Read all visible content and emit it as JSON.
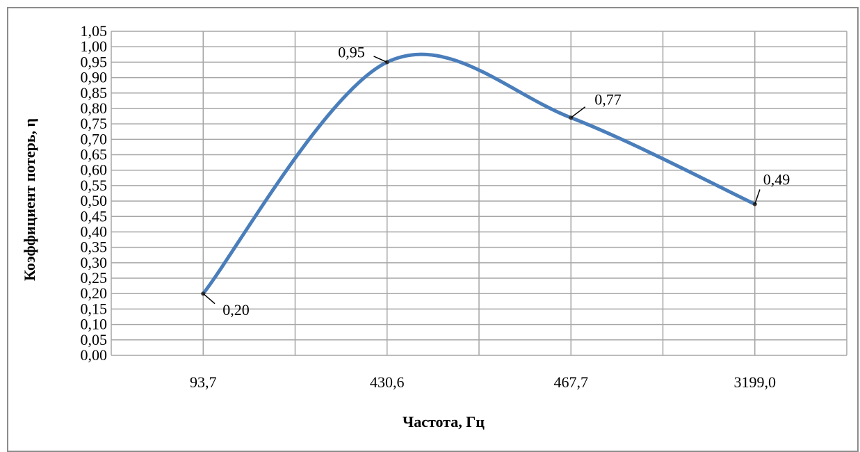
{
  "chart_data": {
    "type": "line",
    "title": "",
    "xlabel": "Частота, Гц",
    "ylabel": "Коэффициент потерь, η",
    "categories": [
      "93,7",
      "430,6",
      "467,7",
      "3199,0"
    ],
    "series": [
      {
        "values": [
          0.2,
          0.95,
          0.77,
          0.49
        ],
        "labels": [
          "0,20",
          "0,95",
          "0,77",
          "0,49"
        ],
        "color": "#4a7ebb"
      }
    ],
    "ylim": [
      0,
      1.05
    ],
    "ytick_step": 0.05,
    "yticks": [
      "0,00",
      "0,05",
      "0,10",
      "0,15",
      "0,20",
      "0,25",
      "0,30",
      "0,35",
      "0,40",
      "0,45",
      "0,50",
      "0,55",
      "0,60",
      "0,65",
      "0,70",
      "0,75",
      "0,80",
      "0,85",
      "0,90",
      "0,95",
      "1,00",
      "1,05"
    ],
    "grid": true,
    "legend": "none",
    "smooth": true
  }
}
